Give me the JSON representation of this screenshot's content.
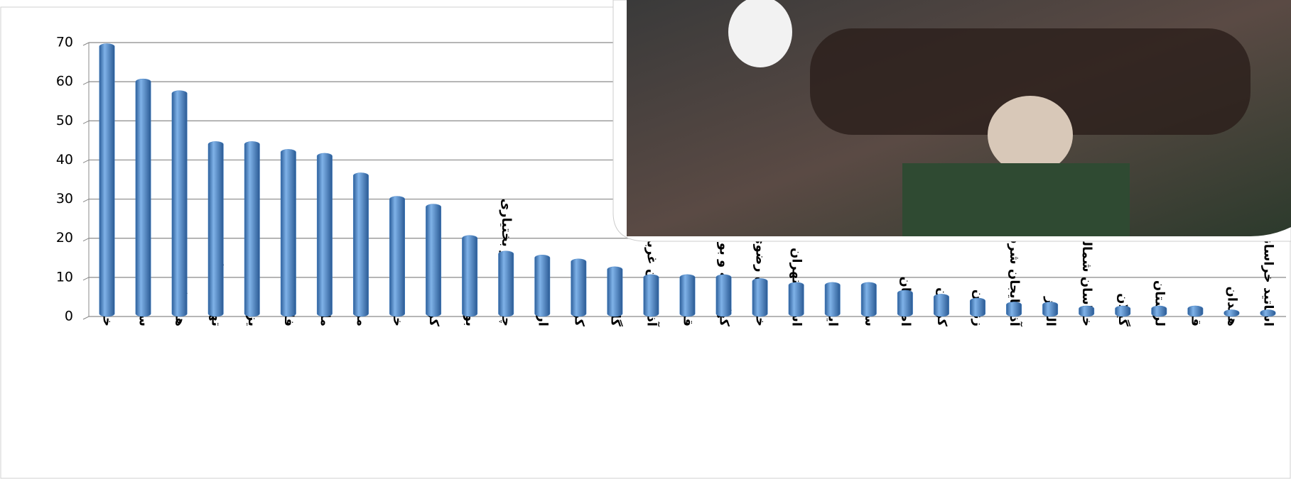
{
  "chart_data": {
    "type": "bar",
    "categories": [
      "خوزستان",
      "سیستان و بلوچستان",
      "هرمزگان",
      "تهران بزرگ",
      "یزد",
      "فارس",
      "مازندران",
      "مرکزی",
      "خراسان جنوبی",
      "کردستان",
      "بوشهر",
      "چهارمحال و بختیاری",
      "اردبیل",
      "کرمانشاه",
      "گلستان",
      "آذربایجان غربی",
      "قزوین",
      "کهگیلویه و بویراحمد",
      "خراسان رضوی",
      "استان تهران",
      "ایلام",
      "سمنان",
      "اصفهان",
      "کرمان",
      "زنجان",
      "آذربایجان شرقی",
      "البرز",
      "خراسان شمالی",
      "گیلان",
      "لرستان",
      "قم",
      "همدان",
      "اساتید خراسانات"
    ],
    "values": [
      69,
      60,
      57,
      44,
      44,
      42,
      41,
      36,
      30,
      28,
      20,
      16,
      15,
      14,
      12,
      10,
      10,
      10,
      9,
      8,
      8,
      8,
      6,
      5,
      4,
      3,
      3,
      2,
      2,
      2,
      2,
      1,
      1
    ],
    "color": "#4a86c8",
    "ylim": [
      0,
      70
    ],
    "yticks": [
      0,
      10,
      20,
      30,
      40,
      50,
      60,
      70
    ],
    "grid": true
  }
}
